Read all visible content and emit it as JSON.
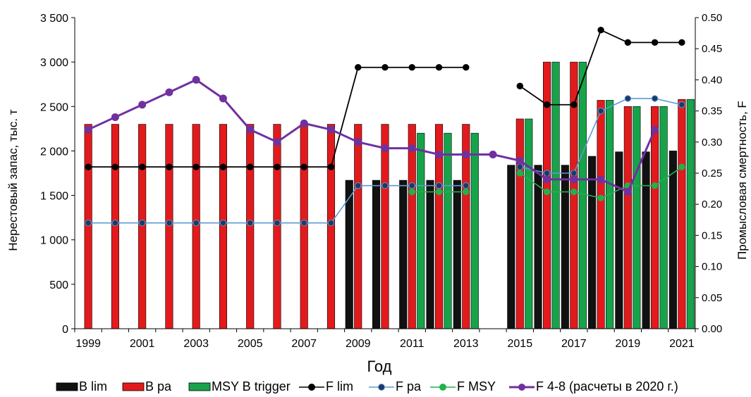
{
  "chart_data": {
    "type": "bar",
    "xlabel": "Год",
    "ylabel_left": "Нерестовый запас, тыс. т",
    "ylabel_right": "Промысловая смертность, F",
    "y_left_lim": [
      0,
      3500
    ],
    "y_left_ticks": [
      0,
      500,
      1000,
      1500,
      2000,
      2500,
      3000,
      3500
    ],
    "y_left_tick_labels": [
      "0",
      "500",
      "1 000",
      "1 500",
      "2 000",
      "2 500",
      "3 000",
      "3 500"
    ],
    "y_right_lim": [
      0,
      0.5
    ],
    "y_right_ticks": [
      0,
      0.05,
      0.1,
      0.15,
      0.2,
      0.25,
      0.3,
      0.35,
      0.4,
      0.45,
      0.5
    ],
    "y_right_tick_labels": [
      "0.00",
      "0.05",
      "0.10",
      "0.15",
      "0.20",
      "0.25",
      "0.30",
      "0.35",
      "0.40",
      "0.45",
      "0.50"
    ],
    "categories": [
      1999,
      2000,
      2001,
      2002,
      2003,
      2004,
      2005,
      2006,
      2007,
      2008,
      2009,
      2010,
      2011,
      2012,
      2013,
      2014,
      2015,
      2016,
      2017,
      2018,
      2019,
      2020,
      2021
    ],
    "x_tick_labels": [
      "1999",
      "2001",
      "2003",
      "2005",
      "2007",
      "2009",
      "2011",
      "2013",
      "2015",
      "2017",
      "2019",
      "2021"
    ],
    "bar_series": [
      {
        "name": "B lim",
        "color": "#111111",
        "values": [
          null,
          null,
          null,
          null,
          null,
          null,
          null,
          null,
          null,
          null,
          1670,
          1670,
          1670,
          1670,
          1670,
          null,
          1840,
          1840,
          1840,
          1940,
          1990,
          1990,
          2000
        ]
      },
      {
        "name": "B pa",
        "color": "#e31a1c",
        "values": [
          2300,
          2300,
          2300,
          2300,
          2300,
          2300,
          2300,
          2300,
          2300,
          2300,
          2300,
          2300,
          2300,
          2300,
          2300,
          null,
          2360,
          3000,
          3000,
          2570,
          2500,
          2500,
          2580
        ]
      },
      {
        "name": "MSY B trigger",
        "color": "#17a34a",
        "values": [
          null,
          null,
          null,
          null,
          null,
          null,
          null,
          null,
          null,
          null,
          null,
          null,
          2200,
          2200,
          2200,
          null,
          2360,
          3000,
          3000,
          2570,
          2500,
          2500,
          2580
        ]
      }
    ],
    "line_series": [
      {
        "name": "F lim",
        "color": "#000000",
        "marker": "#000000",
        "values": [
          0.26,
          0.26,
          0.26,
          0.26,
          0.26,
          0.26,
          0.26,
          0.26,
          0.26,
          0.26,
          0.42,
          0.42,
          0.42,
          0.42,
          0.42,
          null,
          0.39,
          0.36,
          0.36,
          0.48,
          0.46,
          0.46,
          0.46
        ]
      },
      {
        "name": "F pa",
        "color": "#5b9bd5",
        "marker": "#1f3864",
        "values": [
          0.17,
          0.17,
          0.17,
          0.17,
          0.17,
          0.17,
          0.17,
          0.17,
          0.17,
          0.17,
          0.23,
          0.23,
          0.23,
          0.23,
          0.23,
          null,
          0.26,
          0.25,
          0.25,
          0.35,
          0.37,
          0.37,
          0.36
        ]
      },
      {
        "name": "F MSY",
        "color": "#22b14c",
        "marker": "#22b14c",
        "values": [
          null,
          null,
          null,
          null,
          null,
          null,
          null,
          null,
          null,
          null,
          null,
          null,
          0.22,
          0.22,
          0.22,
          null,
          0.25,
          0.22,
          0.22,
          0.21,
          0.23,
          0.23,
          0.26
        ]
      },
      {
        "name": "F 4-8 (расчеты в 2020 г.)",
        "color": "#7030a0",
        "marker": "#7030a0",
        "values": [
          0.32,
          0.34,
          0.36,
          0.38,
          0.4,
          0.37,
          0.32,
          0.3,
          0.33,
          0.32,
          0.3,
          0.29,
          0.29,
          0.28,
          0.28,
          0.28,
          0.27,
          0.24,
          0.24,
          0.24,
          0.22,
          0.32,
          null
        ]
      }
    ],
    "legend_position": "bottom",
    "grid": false
  }
}
